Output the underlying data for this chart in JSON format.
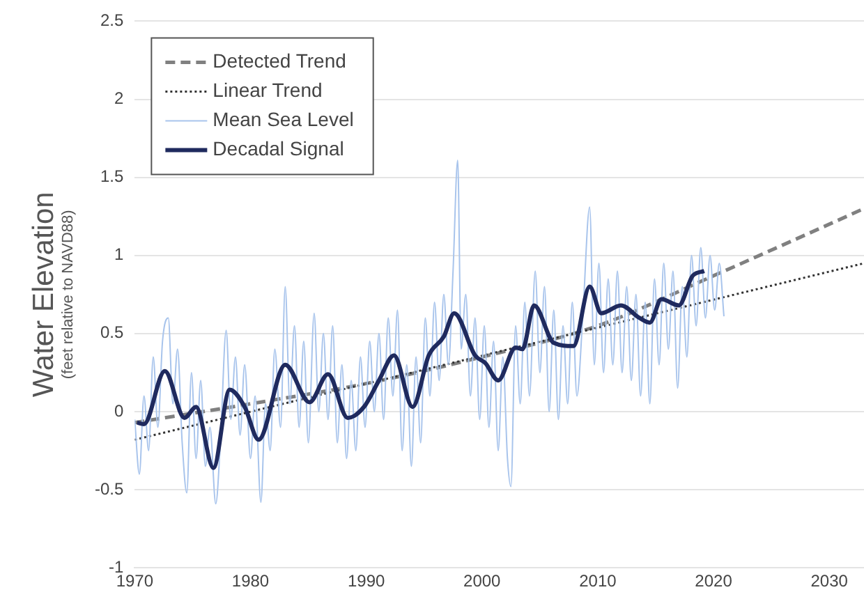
{
  "chart_data": {
    "type": "line",
    "ylabel": "Water Elevation\n(feet relative to NAVD88)",
    "xlim": [
      1970,
      2033
    ],
    "xticks": [
      1970,
      1980,
      1990,
      2000,
      2010,
      2020,
      2030
    ],
    "ylim": [
      -1,
      2.5
    ],
    "yticks": [
      -1,
      -0.5,
      0,
      0.5,
      1,
      1.5,
      2,
      2.5
    ],
    "grid": "y",
    "legend": "top left",
    "marker": "none",
    "series": [
      {
        "name": "Detected Trend",
        "color": "#808080",
        "line_style": "dashed",
        "x": [
          1970,
          1980,
          1990,
          2000,
          2010,
          2020,
          2030,
          2033
        ],
        "values": [
          -0.07,
          0.05,
          0.18,
          0.35,
          0.55,
          0.87,
          1.2,
          1.3
        ]
      },
      {
        "name": "Linear Trend",
        "color": "#333333",
        "line_style": "dotted",
        "x": [
          1970,
          2033
        ],
        "values": [
          -0.18,
          0.95
        ]
      },
      {
        "name": "Mean Sea Level",
        "color": "#a8c4ec",
        "line_style": "solid",
        "x": [
          1970.0,
          1970.4,
          1970.8,
          1971.2,
          1971.6,
          1972.0,
          1972.4,
          1972.9,
          1973.3,
          1973.7,
          1974.1,
          1974.5,
          1974.9,
          1975.3,
          1975.7,
          1976.1,
          1976.5,
          1977.0,
          1977.4,
          1977.9,
          1978.3,
          1978.7,
          1979.1,
          1979.5,
          1980.0,
          1980.4,
          1980.9,
          1981.3,
          1981.7,
          1982.1,
          1982.6,
          1983.0,
          1983.4,
          1983.8,
          1984.2,
          1984.6,
          1985.0,
          1985.5,
          1985.9,
          1986.3,
          1986.7,
          1987.1,
          1987.5,
          1987.9,
          1988.3,
          1988.7,
          1989.1,
          1989.5,
          1989.9,
          1990.3,
          1990.7,
          1991.1,
          1991.5,
          1991.9,
          1992.3,
          1992.7,
          1993.1,
          1993.5,
          1993.9,
          1994.3,
          1994.7,
          1995.1,
          1995.5,
          1995.9,
          1996.3,
          1996.7,
          1997.1,
          1997.5,
          1997.9,
          1998.2,
          1998.6,
          1999.0,
          1999.4,
          1999.8,
          2000.2,
          2000.6,
          2001.0,
          2001.4,
          2001.8,
          2002.2,
          2002.5,
          2002.9,
          2003.3,
          2003.7,
          2004.1,
          2004.6,
          2005.0,
          2005.4,
          2005.8,
          2006.2,
          2006.6,
          2007.0,
          2007.4,
          2007.8,
          2008.2,
          2008.7,
          2009.3,
          2009.7,
          2010.1,
          2010.5,
          2010.9,
          2011.3,
          2011.7,
          2012.1,
          2012.5,
          2012.9,
          2013.3,
          2013.7,
          2014.1,
          2014.5,
          2014.9,
          2015.3,
          2015.7,
          2016.1,
          2016.5,
          2016.9,
          2017.3,
          2017.7,
          2018.1,
          2018.5,
          2018.9,
          2019.3,
          2019.7,
          2020.1,
          2020.5,
          2020.9
        ],
        "values": [
          -0.05,
          -0.4,
          0.1,
          -0.25,
          0.35,
          -0.1,
          0.45,
          0.6,
          0.05,
          0.4,
          -0.2,
          -0.52,
          0.25,
          -0.3,
          0.2,
          -0.35,
          -0.1,
          -0.59,
          -0.2,
          0.52,
          -0.05,
          0.35,
          -0.15,
          0.3,
          -0.3,
          0.1,
          -0.58,
          0.05,
          -0.25,
          0.4,
          -0.1,
          0.8,
          0.05,
          0.55,
          -0.1,
          0.45,
          -0.2,
          0.63,
          0.0,
          0.5,
          -0.05,
          0.55,
          -0.2,
          0.3,
          -0.3,
          0.2,
          -0.25,
          0.35,
          -0.1,
          0.45,
          0.0,
          0.5,
          -0.05,
          0.6,
          0.1,
          0.65,
          -0.25,
          0.3,
          -0.35,
          0.35,
          -0.2,
          0.6,
          0.1,
          0.7,
          0.2,
          0.75,
          0.3,
          0.9,
          1.61,
          0.4,
          0.75,
          0.1,
          0.6,
          -0.05,
          0.55,
          -0.1,
          0.45,
          -0.25,
          0.35,
          -0.3,
          -0.48,
          0.55,
          0.05,
          0.7,
          0.1,
          0.9,
          0.25,
          0.8,
          0.0,
          0.65,
          -0.05,
          0.55,
          0.05,
          0.7,
          0.1,
          0.6,
          1.31,
          0.3,
          0.95,
          0.25,
          0.85,
          0.3,
          0.9,
          0.25,
          0.8,
          0.2,
          0.75,
          0.1,
          0.7,
          0.05,
          0.85,
          0.3,
          0.95,
          0.4,
          0.9,
          0.15,
          0.8,
          0.35,
          1.0,
          0.55,
          1.05,
          0.6,
          1.0,
          0.65,
          0.95,
          0.61
        ]
      },
      {
        "name": "Decadal Signal",
        "color": "#1f2a5e",
        "line_style": "solid",
        "x": [
          1970.2,
          1970.8,
          1972.6,
          1974.3,
          1975.3,
          1976.8,
          1978.2,
          1979.5,
          1980.7,
          1983.0,
          1985.1,
          1986.7,
          1988.4,
          1989.8,
          1991.1,
          1992.4,
          1994.0,
          1995.4,
          1996.7,
          1997.6,
          1999.4,
          2000.3,
          2001.4,
          2002.9,
          2003.5,
          2004.5,
          2006.2,
          2007.9,
          2009.3,
          2010.3,
          2012.0,
          2013.6,
          2014.5,
          2015.5,
          2017.0,
          2018.2,
          2019.2
        ],
        "values": [
          -0.07,
          -0.08,
          0.26,
          -0.04,
          0.03,
          -0.36,
          0.14,
          0.03,
          -0.18,
          0.3,
          0.06,
          0.24,
          -0.04,
          0.03,
          0.2,
          0.36,
          0.03,
          0.36,
          0.48,
          0.63,
          0.36,
          0.31,
          0.2,
          0.41,
          0.4,
          0.68,
          0.44,
          0.42,
          0.8,
          0.63,
          0.68,
          0.6,
          0.57,
          0.72,
          0.68,
          0.87,
          0.9
        ]
      }
    ]
  }
}
